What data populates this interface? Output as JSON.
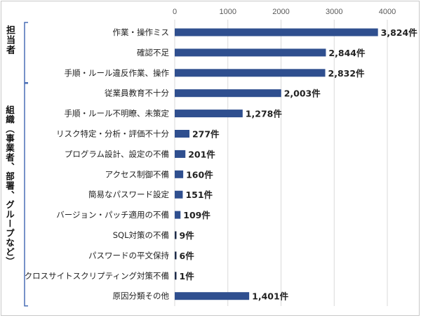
{
  "chart_data": {
    "type": "bar",
    "orientation": "horizontal",
    "title": "",
    "xlabel": "",
    "ylabel": "",
    "xlim": [
      0,
      4000
    ],
    "x_ticks": [
      "0",
      "1000",
      "2000",
      "3000",
      "4000"
    ],
    "grid": true,
    "legend": "none",
    "bar_color": "#2f4f8f",
    "highlight_color": "#1f2d4a",
    "groups": [
      {
        "label": "担当者",
        "categories": [
          0,
          1,
          2
        ]
      },
      {
        "label": "組織（事業者、部署、グループなど）",
        "categories": [
          3,
          4,
          5,
          6,
          7,
          8,
          9,
          10,
          11,
          12,
          13
        ]
      }
    ],
    "categories": [
      "作業・操作ミス",
      "確認不足",
      "手順・ルール違反作業、操作",
      "従業員教育不十分",
      "手順・ルール不明瞭、未策定",
      "リスク特定・分析・評価不十分",
      "プログラム設計、設定の不備",
      "アクセス制御不備",
      "簡易なパスワード設定",
      "バージョン・パッチ適用の不備",
      "SQL対策の不備",
      "パスワードの平文保持",
      "クロスサイトスクリプティング対策不備",
      "原因分類その他"
    ],
    "values": [
      3824,
      2844,
      2832,
      2003,
      1278,
      277,
      201,
      160,
      151,
      109,
      9,
      6,
      1,
      1401
    ],
    "value_labels": [
      "3,824件",
      "2,844件",
      "2,832件",
      "2,003件",
      "1,278件",
      "277件",
      "201件",
      "160件",
      "151件",
      "109件",
      "9件",
      "6件",
      "1件",
      "1,401件"
    ]
  }
}
